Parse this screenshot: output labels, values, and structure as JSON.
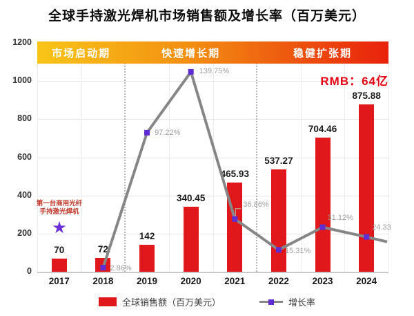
{
  "title": "全球手持激光焊机市场销售额及增长率（百万美元）",
  "rmb_note": "RMB：64亿",
  "annotation": {
    "text_line1": "第一台商用光纤",
    "text_line2": "手持激光焊机",
    "star_icon": "★"
  },
  "legend": {
    "sales_label": "全球销售额（百万美元）",
    "growth_label": "增长率"
  },
  "colors": {
    "bar_red": "#e0181c",
    "accent_red": "#e60012",
    "line_gray": "#868686",
    "marker_purple": "#5e2cd1",
    "star_purple": "#6b2fd8",
    "annotation_red": "#c23b2e",
    "growth_label_gray": "#9e9e9e",
    "banner_gradient_start": "#f9c517",
    "banner_gradient_mid": "#f28c12",
    "banner_gradient_end": "#e8210b"
  },
  "chart_data": {
    "type": "bar",
    "subtype": "bar-line-combo",
    "title": "全球手持激光焊机市场销售额及增长率（百万美元）",
    "categories": [
      "2017",
      "2018",
      "2019",
      "2020",
      "2021",
      "2022",
      "2023",
      "2024"
    ],
    "series": [
      {
        "name": "全球销售额（百万美元）",
        "kind": "bar",
        "axis": "primary",
        "values": [
          70,
          72,
          142,
          340.45,
          465.93,
          537.27,
          704.46,
          875.88
        ],
        "labels": [
          "70",
          "72",
          "142",
          "340.45",
          "465.93",
          "537.27",
          "704.46",
          "875.88"
        ]
      },
      {
        "name": "增长率",
        "kind": "line",
        "axis": "secondary",
        "values": [
          null,
          2.86,
          97.22,
          139.75,
          36.86,
          15.31,
          31.12,
          24.33
        ],
        "labels": [
          null,
          "2.86%",
          "97.22%",
          "139.75%",
          "36.86%",
          "15.31%",
          "31.12%",
          "24.33"
        ]
      }
    ],
    "y_axis": {
      "min": 0,
      "max": 1200,
      "ticks": [
        0,
        200,
        400,
        600,
        800,
        1000,
        1200
      ]
    },
    "secondary_y_axis": {
      "min": 0,
      "max": 160,
      "format": "percent",
      "visible": false
    },
    "grid": true,
    "legend_position": "bottom",
    "phases": [
      {
        "label": "市场启动期",
        "years": [
          "2017",
          "2018"
        ]
      },
      {
        "label": "快速增长期",
        "years": [
          "2019",
          "2020",
          "2021"
        ]
      },
      {
        "label": "稳健扩张期",
        "years": [
          "2022",
          "2023",
          "2024"
        ]
      }
    ]
  }
}
